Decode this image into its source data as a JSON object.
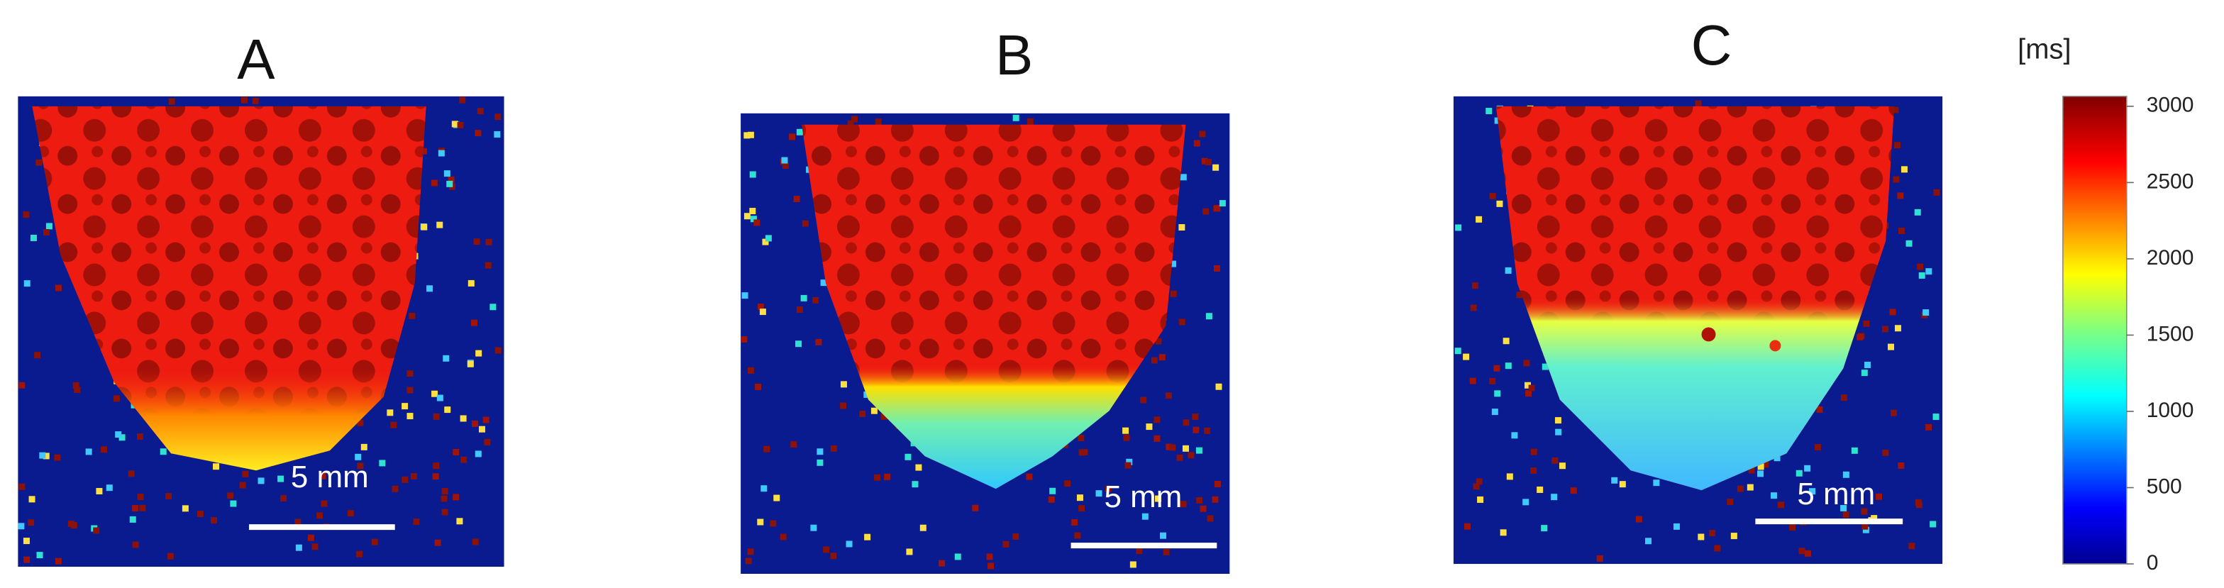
{
  "panels": [
    {
      "label": "A",
      "scale_bar": "5 mm"
    },
    {
      "label": "B",
      "scale_bar": "5 mm"
    },
    {
      "label": "C",
      "scale_bar": "5 mm"
    }
  ],
  "colorbar": {
    "unit": "[ms]",
    "ticks": [
      3000,
      2500,
      2000,
      1500,
      1000,
      500,
      0
    ]
  }
}
